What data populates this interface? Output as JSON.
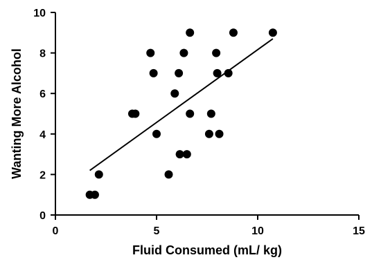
{
  "chart_data": {
    "type": "scatter",
    "xlabel": "Fluid Consumed (mL/ kg)",
    "ylabel": "Wanting More Alcohol",
    "xlim": [
      0,
      15
    ],
    "ylim": [
      0,
      10
    ],
    "x_ticks": [
      "0",
      "5",
      "10",
      "15"
    ],
    "y_ticks": [
      "0",
      "2",
      "4",
      "6",
      "8",
      "10"
    ],
    "grid": false,
    "legend": "none",
    "points": [
      {
        "x": 1.7,
        "y": 1
      },
      {
        "x": 1.95,
        "y": 1
      },
      {
        "x": 2.15,
        "y": 2
      },
      {
        "x": 3.8,
        "y": 5
      },
      {
        "x": 3.95,
        "y": 5
      },
      {
        "x": 4.7,
        "y": 8
      },
      {
        "x": 4.85,
        "y": 7
      },
      {
        "x": 5.0,
        "y": 4
      },
      {
        "x": 5.6,
        "y": 2
      },
      {
        "x": 5.9,
        "y": 6
      },
      {
        "x": 6.1,
        "y": 7
      },
      {
        "x": 6.15,
        "y": 3
      },
      {
        "x": 6.35,
        "y": 8
      },
      {
        "x": 6.5,
        "y": 3
      },
      {
        "x": 6.65,
        "y": 9
      },
      {
        "x": 6.65,
        "y": 5
      },
      {
        "x": 7.6,
        "y": 4
      },
      {
        "x": 7.7,
        "y": 5
      },
      {
        "x": 7.95,
        "y": 8
      },
      {
        "x": 8.0,
        "y": 7
      },
      {
        "x": 8.1,
        "y": 4
      },
      {
        "x": 8.55,
        "y": 7
      },
      {
        "x": 8.8,
        "y": 9
      },
      {
        "x": 10.75,
        "y": 9
      }
    ],
    "fit_line": {
      "x": [
        1.7,
        10.75
      ],
      "y": [
        2.2,
        8.7
      ]
    },
    "colors": {
      "marker": "#000000",
      "line": "#000000",
      "axis": "#000000"
    }
  }
}
